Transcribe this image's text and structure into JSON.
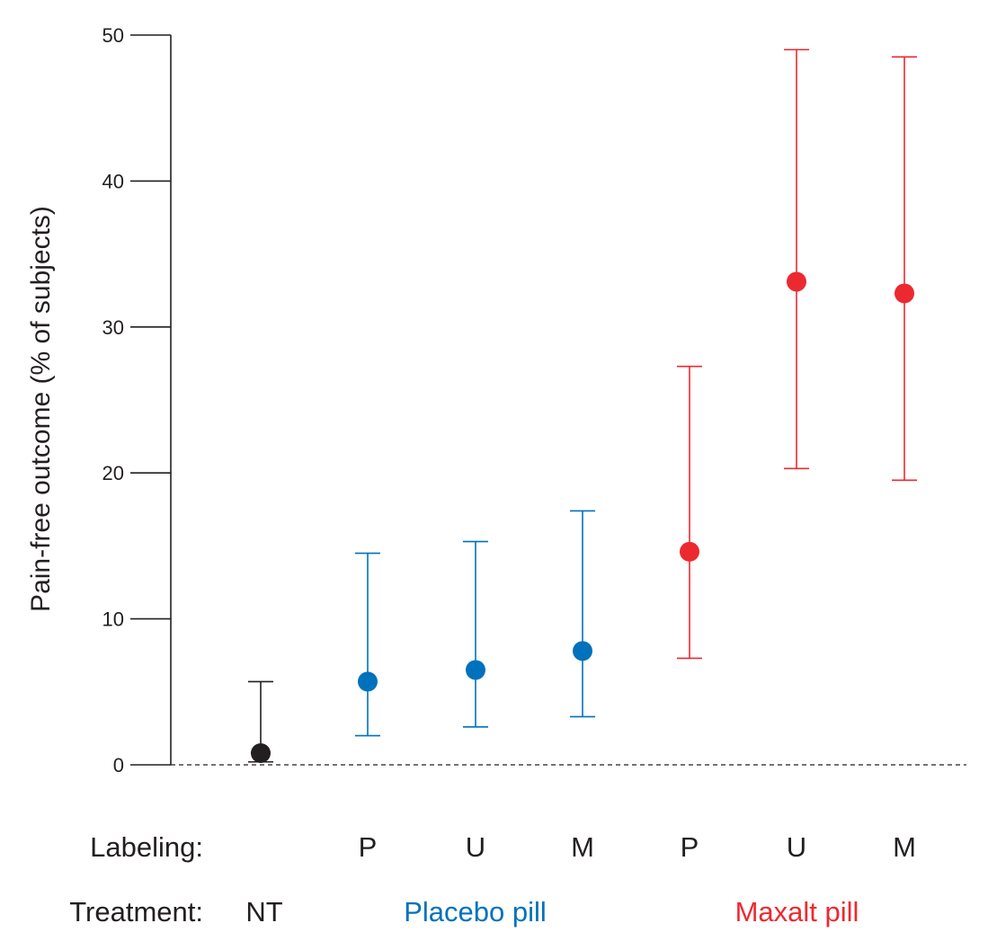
{
  "chart_data": {
    "type": "scatter",
    "title": "",
    "xlabel": "",
    "ylabel": "Pain-free outcome (% of subjects)",
    "ylim": [
      0,
      50
    ],
    "yticks": [
      0,
      10,
      20,
      30,
      40,
      50
    ],
    "ytick_labels": [
      "0",
      "10",
      "20",
      "30",
      "40",
      "50"
    ],
    "grid": false,
    "reference_line": {
      "y": 0,
      "style": "dashed"
    },
    "row_labels": {
      "labeling": "Labeling:",
      "treatment": "Treatment:"
    },
    "groups": [
      {
        "name": "NT",
        "color": "#231f20",
        "span": [
          0,
          0
        ]
      },
      {
        "name": "Placebo pill",
        "color": "#0071bc",
        "span": [
          1,
          3
        ]
      },
      {
        "name": "Maxalt pill",
        "color": "#ed2930",
        "span": [
          4,
          6
        ]
      }
    ],
    "points": [
      {
        "treatment": "NT",
        "labeling": "",
        "value": 0.8,
        "ci_low": 0.2,
        "ci_high": 5.7,
        "color": "#231f20"
      },
      {
        "treatment": "Placebo pill",
        "labeling": "P",
        "value": 5.7,
        "ci_low": 2.0,
        "ci_high": 14.5,
        "color": "#0071bc"
      },
      {
        "treatment": "Placebo pill",
        "labeling": "U",
        "value": 6.5,
        "ci_low": 2.6,
        "ci_high": 15.3,
        "color": "#0071bc"
      },
      {
        "treatment": "Placebo pill",
        "labeling": "M",
        "value": 7.8,
        "ci_low": 3.3,
        "ci_high": 17.4,
        "color": "#0071bc"
      },
      {
        "treatment": "Maxalt pill",
        "labeling": "P",
        "value": 14.6,
        "ci_low": 7.3,
        "ci_high": 27.3,
        "color": "#ed2930"
      },
      {
        "treatment": "Maxalt pill",
        "labeling": "U",
        "value": 33.1,
        "ci_low": 20.3,
        "ci_high": 49.0,
        "color": "#ed2930"
      },
      {
        "treatment": "Maxalt pill",
        "labeling": "M",
        "value": 32.3,
        "ci_low": 19.5,
        "ci_high": 48.5,
        "color": "#ed2930"
      }
    ]
  }
}
